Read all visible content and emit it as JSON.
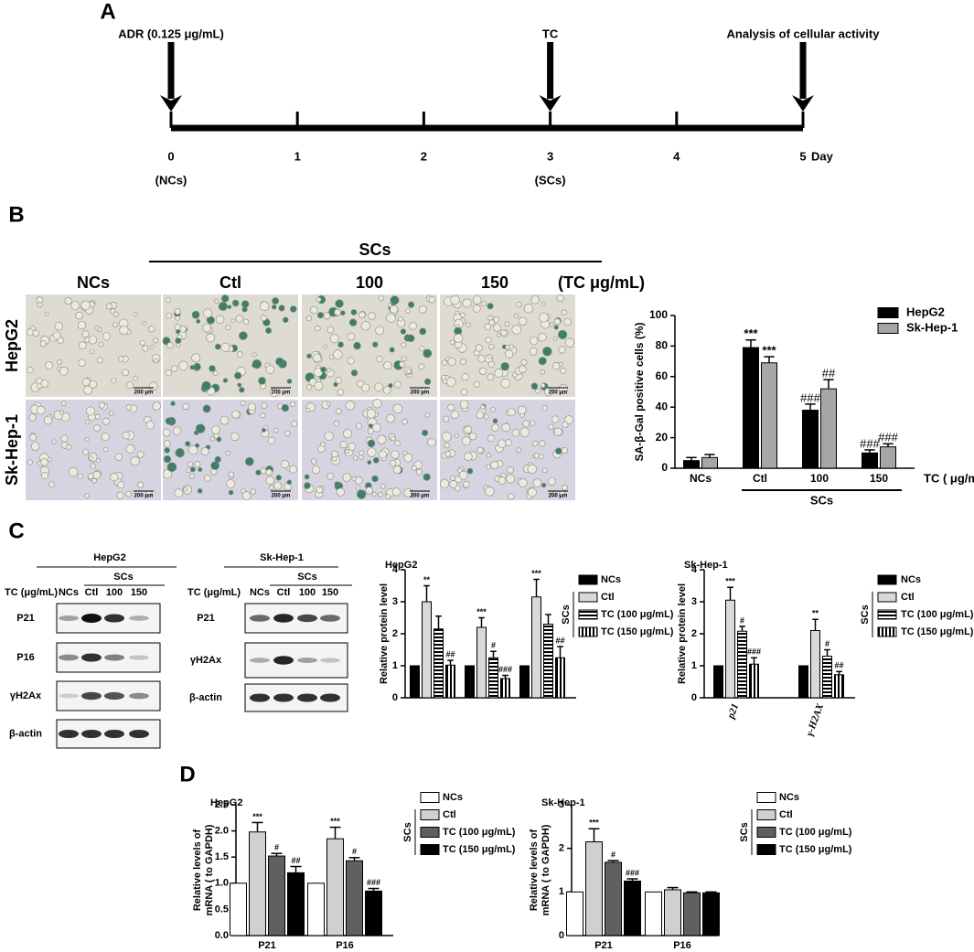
{
  "panel_labels": [
    "A",
    "B",
    "C",
    "D"
  ],
  "timeline": {
    "days": [
      0,
      1,
      2,
      3,
      4,
      5
    ],
    "unit": "Day",
    "events": [
      {
        "day": 0,
        "text": "ADR (0.125 μg/mL)"
      },
      {
        "day": 3,
        "text": "TC"
      },
      {
        "day": 5,
        "text": "Analysis of cellular activity"
      }
    ],
    "phases": [
      {
        "day": 0,
        "text": "(NCs)"
      },
      {
        "day": 3,
        "text": "(SCs)"
      }
    ]
  },
  "micrographs": {
    "group_label": "SCs",
    "columns": [
      "NCs",
      "Ctl",
      "100",
      "150"
    ],
    "unit": "(TC μg/mL)",
    "rows": [
      "HepG2",
      "Sk-Hep-1"
    ],
    "scale_bar": "200 μm"
  },
  "blots": [
    {
      "title": "HepG2",
      "group_label": "SCs",
      "lane_header": "TC (μg/mL)",
      "lanes": [
        "NCs",
        "Ctl",
        "100",
        "150"
      ],
      "rows": [
        {
          "protein": "P21",
          "intensity": [
            0.35,
            1,
            0.85,
            0.3
          ]
        },
        {
          "protein": "P16",
          "intensity": [
            0.45,
            0.85,
            0.5,
            0.2
          ]
        },
        {
          "protein": "γH2Ax",
          "intensity": [
            0.15,
            0.75,
            0.7,
            0.45
          ]
        },
        {
          "protein": "β-actin",
          "intensity": [
            0.85,
            0.85,
            0.85,
            0.85
          ]
        }
      ]
    },
    {
      "title": "Sk-Hep-1",
      "group_label": "SCs",
      "lane_header": "TC (μg/mL)",
      "lanes": [
        "NCs",
        "Ctl",
        "100",
        "150"
      ],
      "rows": [
        {
          "protein": "P21",
          "intensity": [
            0.6,
            0.9,
            0.75,
            0.6
          ]
        },
        {
          "protein": "γH2Ax",
          "intensity": [
            0.3,
            0.9,
            0.35,
            0.2
          ]
        },
        {
          "protein": "β-actin",
          "intensity": [
            0.85,
            0.85,
            0.85,
            0.85
          ]
        }
      ]
    }
  ],
  "chart_data": [
    {
      "type": "bar",
      "ylabel": "SA-β-Gal positive cells (%)",
      "xlabel": "TC ( μg/mL)",
      "group_label": "SCs",
      "categories": [
        "NCs",
        "Ctl",
        "100",
        "150"
      ],
      "series": [
        {
          "name": "HepG2",
          "color": "#000000",
          "values": [
            5,
            79,
            38,
            10
          ],
          "errors": [
            2,
            5,
            4,
            2
          ],
          "sig": [
            null,
            "***",
            "###",
            "###"
          ]
        },
        {
          "name": "Sk-Hep-1",
          "color": "#a6a6a6",
          "values": [
            7,
            69,
            52,
            14
          ],
          "errors": [
            2,
            4,
            6,
            2
          ],
          "sig": [
            null,
            "***",
            "##",
            "###"
          ]
        }
      ],
      "ylim": [
        0,
        100
      ],
      "yticks": [
        0,
        20,
        40,
        60,
        80,
        100
      ]
    },
    {
      "type": "bar",
      "title": "HepG2",
      "ylabel": "Relative protein level",
      "legend_group": "SCs",
      "categories": [
        null,
        null,
        null
      ],
      "series": [
        {
          "name": "NCs",
          "color": "#000000",
          "values": [
            1,
            1,
            1
          ]
        },
        {
          "name": "Ctl",
          "color": "#d9d9d9",
          "values": [
            3.0,
            2.2,
            3.15
          ],
          "errors": [
            0.5,
            0.3,
            0.55
          ],
          "sig": [
            "**",
            "***",
            "***"
          ]
        },
        {
          "name": "TC (100 μg/mL)",
          "color": "#000000",
          "pattern": "horizontal-stripes",
          "values": [
            2.15,
            1.25,
            2.3
          ],
          "errors": [
            0.4,
            0.2,
            0.3
          ],
          "sig": [
            null,
            "#",
            null
          ]
        },
        {
          "name": "TC (150 μg/mL)",
          "color": "#000000",
          "pattern": "vertical-stripes",
          "values": [
            1.02,
            0.6,
            1.25
          ],
          "errors": [
            0.15,
            0.1,
            0.35
          ],
          "sig": [
            "##",
            "###",
            "##"
          ]
        }
      ],
      "ylim": [
        0,
        4
      ],
      "yticks": [
        0,
        1,
        2,
        3,
        4
      ]
    },
    {
      "type": "bar",
      "title": "Sk-Hep-1",
      "ylabel": "Relative protein level",
      "legend_group": "SCs",
      "categories": [
        "p21",
        "γ-H2AX"
      ],
      "series": [
        {
          "name": "NCs",
          "color": "#000000",
          "values": [
            1,
            1
          ]
        },
        {
          "name": "Ctl",
          "color": "#d9d9d9",
          "values": [
            3.05,
            2.1
          ],
          "errors": [
            0.4,
            0.35
          ],
          "sig": [
            "***",
            "**"
          ]
        },
        {
          "name": "TC (100 μg/mL)",
          "color": "#000000",
          "pattern": "horizontal-stripes",
          "values": [
            2.08,
            1.3
          ],
          "errors": [
            0.15,
            0.2
          ],
          "sig": [
            "#",
            "#"
          ]
        },
        {
          "name": "TC (150 μg/mL)",
          "color": "#000000",
          "pattern": "vertical-stripes",
          "values": [
            1.05,
            0.72
          ],
          "errors": [
            0.2,
            0.1
          ],
          "sig": [
            "###",
            "##"
          ]
        }
      ],
      "ylim": [
        0,
        4
      ],
      "yticks": [
        0,
        1,
        2,
        3,
        4
      ]
    },
    {
      "type": "bar",
      "title": "HepG2",
      "ylabel": [
        "Relative levels of",
        "mRNA ( to GAPDH)"
      ],
      "legend_group": "SCs",
      "categories": [
        "P21",
        "P16"
      ],
      "series": [
        {
          "name": "NCs",
          "color": "#ffffff",
          "values": [
            1,
            1
          ]
        },
        {
          "name": "Ctl",
          "color": "#d0d0d0",
          "values": [
            1.98,
            1.85
          ],
          "errors": [
            0.18,
            0.22
          ],
          "sig": [
            "***",
            "***"
          ]
        },
        {
          "name": "TC (100 μg/mL)",
          "color": "#606060",
          "values": [
            1.52,
            1.43
          ],
          "errors": [
            0.05,
            0.06
          ],
          "sig": [
            "#",
            "#"
          ]
        },
        {
          "name": "TC (150 μg/mL)",
          "color": "#000000",
          "values": [
            1.2,
            0.85
          ],
          "errors": [
            0.12,
            0.05
          ],
          "sig": [
            "##",
            "###"
          ]
        }
      ],
      "ylim": [
        0,
        2.5
      ],
      "yticks": [
        {
          "value": 0,
          "label": "0.0"
        },
        {
          "value": 0.5,
          "label": "0.5"
        },
        {
          "value": 1,
          "label": "1.0"
        },
        {
          "value": 1.5,
          "label": "1.5"
        },
        {
          "value": 2,
          "label": "2.0"
        },
        {
          "value": 2.5,
          "label": "2.5"
        }
      ]
    },
    {
      "type": "bar",
      "title": "Sk-Hep-1",
      "ylabel": [
        "Relative levels of",
        "mRNA ( to GAPDH)"
      ],
      "legend_group": "SCs",
      "categories": [
        "P21",
        "P16"
      ],
      "series": [
        {
          "name": "NCs",
          "color": "#ffffff",
          "values": [
            1,
            1
          ]
        },
        {
          "name": "Ctl",
          "color": "#d0d0d0",
          "values": [
            2.15,
            1.05
          ],
          "errors": [
            0.3,
            0.05
          ],
          "sig": [
            "***",
            null
          ]
        },
        {
          "name": "TC (100 μg/mL)",
          "color": "#606060",
          "values": [
            1.68,
            0.98
          ],
          "errors": [
            0.04,
            0.02
          ],
          "sig": [
            "#",
            null
          ]
        },
        {
          "name": "TC (150 μg/mL)",
          "color": "#000000",
          "values": [
            1.25,
            0.98
          ],
          "errors": [
            0.05,
            0.02
          ],
          "sig": [
            "###",
            null
          ]
        }
      ],
      "ylim": [
        0,
        3
      ],
      "yticks": [
        0,
        1,
        2,
        3
      ]
    }
  ]
}
